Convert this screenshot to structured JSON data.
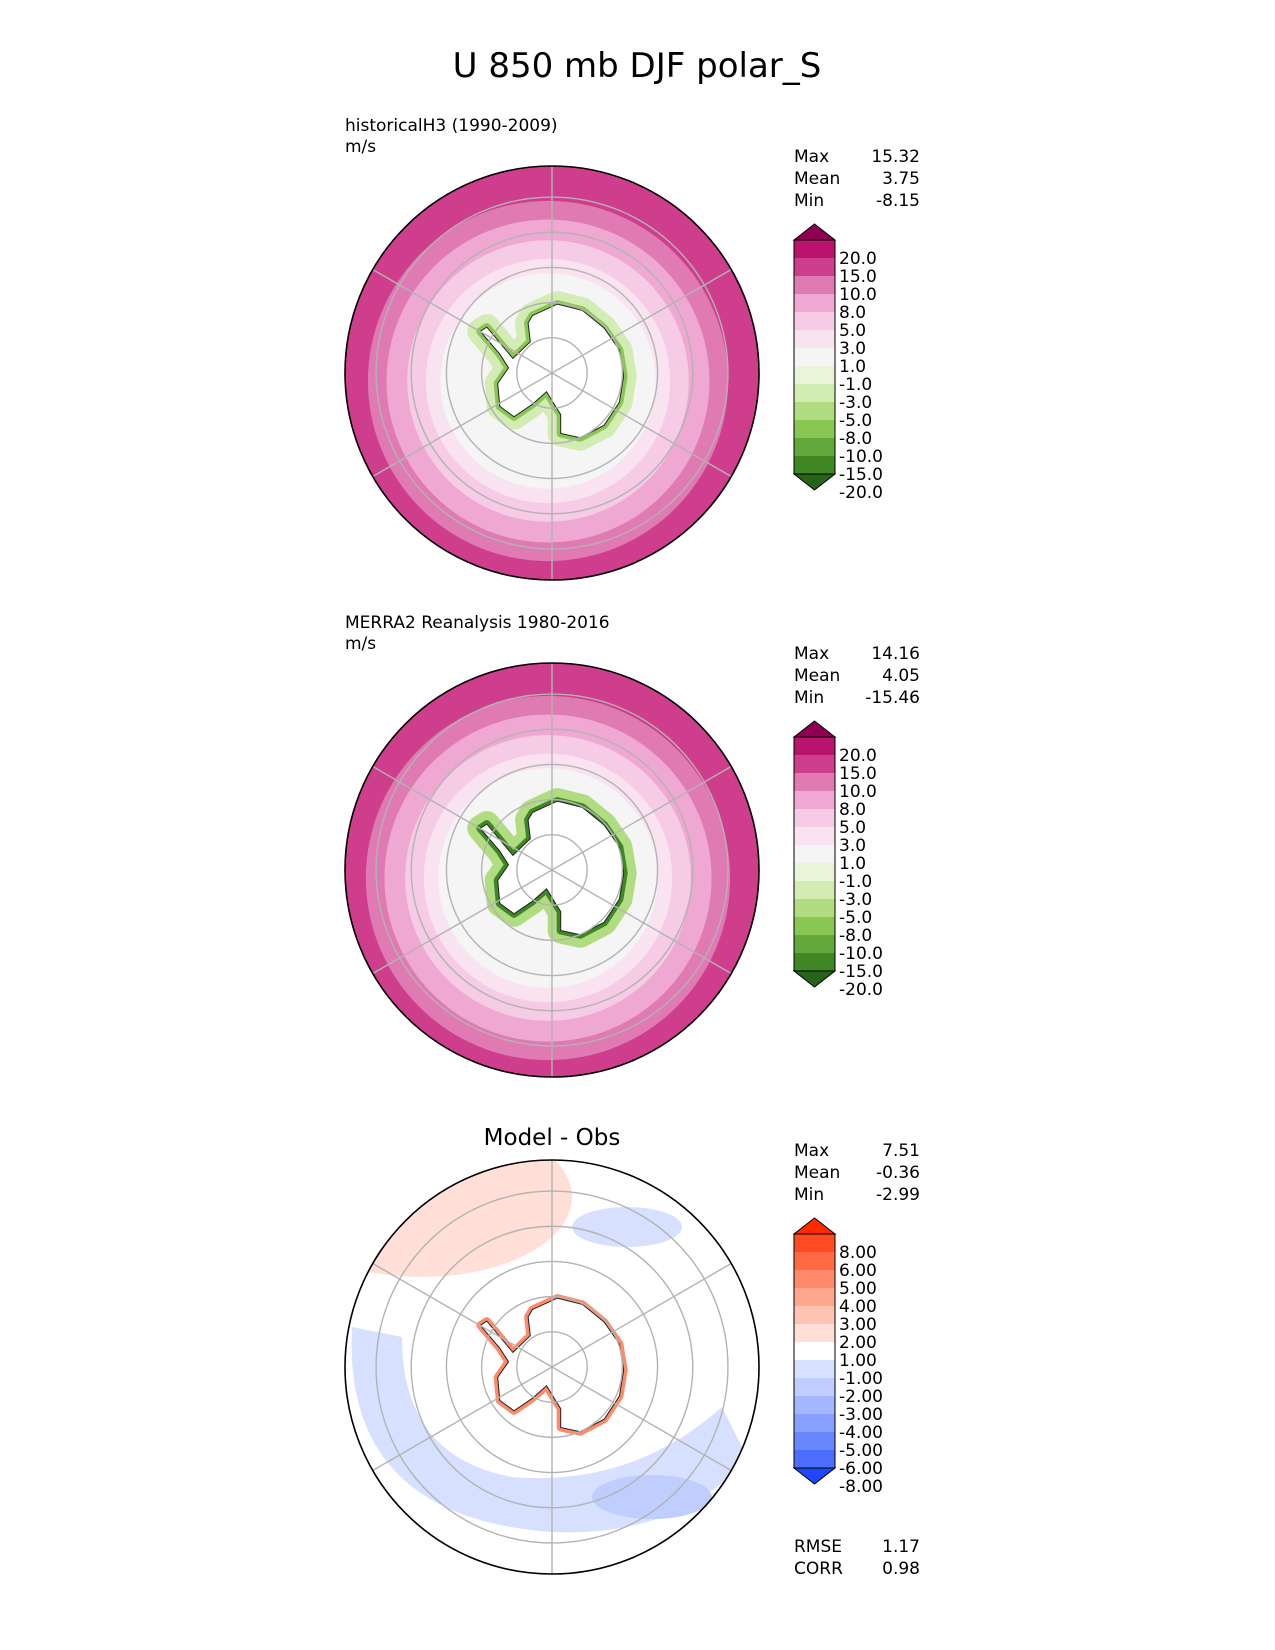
{
  "figure": {
    "title": "U 850 mb DJF polar_S"
  },
  "panels": [
    {
      "id": "model",
      "heading": "historicalH3 (1990-2009)",
      "units": "m/s",
      "center_title": "",
      "stats": [
        {
          "label": "Max",
          "value": "15.32"
        },
        {
          "label": "Mean",
          "value": "3.75"
        },
        {
          "label": "Min",
          "value": "-8.15"
        }
      ],
      "colorbar": {
        "labels": [
          "20.0",
          "15.0",
          "10.0",
          "8.0",
          "5.0",
          "3.0",
          "1.0",
          "-1.0",
          "-3.0",
          "-5.0",
          "-8.0",
          "-10.0",
          "-15.0",
          "-20.0"
        ],
        "colors": [
          "#8e0152",
          "#b9136d",
          "#cf3d8d",
          "#e07ab3",
          "#efa8d2",
          "#f6cbe5",
          "#fae3f1",
          "#f5f5f5",
          "#e9f4d9",
          "#d2ecb3",
          "#b2dc82",
          "#8ac653",
          "#62a83a",
          "#3f8624",
          "#276419"
        ]
      },
      "field": {
        "bands": [
          {
            "r": 1.0,
            "color": "#cf3d8d"
          },
          {
            "r": 0.87,
            "color": "#e07ab3"
          },
          {
            "r": 0.78,
            "color": "#efa8d2"
          },
          {
            "r": 0.68,
            "color": "#f6cbe5"
          },
          {
            "r": 0.59,
            "color": "#fae3f1"
          },
          {
            "r": 0.52,
            "color": "#f5f5f5"
          }
        ],
        "coast_ring": [
          "#d2ecb3",
          "#8ac653"
        ]
      }
    },
    {
      "id": "obs",
      "heading": "MERRA2 Reanalysis 1980-2016",
      "units": "m/s",
      "center_title": "",
      "stats": [
        {
          "label": "Max",
          "value": "14.16"
        },
        {
          "label": "Mean",
          "value": "4.05"
        },
        {
          "label": "Min",
          "value": "-15.46"
        }
      ],
      "colorbar": {
        "labels": [
          "20.0",
          "15.0",
          "10.0",
          "8.0",
          "5.0",
          "3.0",
          "1.0",
          "-1.0",
          "-3.0",
          "-5.0",
          "-8.0",
          "-10.0",
          "-15.0",
          "-20.0"
        ],
        "colors": [
          "#8e0152",
          "#b9136d",
          "#cf3d8d",
          "#e07ab3",
          "#efa8d2",
          "#f6cbe5",
          "#fae3f1",
          "#f5f5f5",
          "#e9f4d9",
          "#d2ecb3",
          "#b2dc82",
          "#8ac653",
          "#62a83a",
          "#3f8624",
          "#276419"
        ]
      },
      "field": {
        "bands": [
          {
            "r": 1.0,
            "color": "#cf3d8d"
          },
          {
            "r": 0.88,
            "color": "#e07ab3"
          },
          {
            "r": 0.79,
            "color": "#efa8d2"
          },
          {
            "r": 0.69,
            "color": "#f6cbe5"
          },
          {
            "r": 0.6,
            "color": "#fae3f1"
          },
          {
            "r": 0.53,
            "color": "#f5f5f5"
          }
        ],
        "coast_ring": [
          "#b2dc82",
          "#3f8624"
        ]
      }
    },
    {
      "id": "diff",
      "heading": "",
      "units": "",
      "center_title": "Model - Obs",
      "stats": [
        {
          "label": "Max",
          "value": "7.51"
        },
        {
          "label": "Mean",
          "value": "-0.36"
        },
        {
          "label": "Min",
          "value": "-2.99"
        }
      ],
      "footer_stats": [
        {
          "label": "RMSE",
          "value": "1.17"
        },
        {
          "label": "CORR",
          "value": "0.98"
        }
      ],
      "colorbar": {
        "labels": [
          "8.00",
          "6.00",
          "5.00",
          "4.00",
          "3.00",
          "2.00",
          "1.00",
          "-1.00",
          "-2.00",
          "-3.00",
          "-4.00",
          "-5.00",
          "-6.00",
          "-8.00"
        ],
        "colors": [
          "#ff2a00",
          "#ff4a22",
          "#ff6a45",
          "#ff8a6a",
          "#ffa68e",
          "#ffc3b3",
          "#ffdfd7",
          "#ffffff",
          "#d7e0ff",
          "#bfcdff",
          "#a3b6ff",
          "#879fff",
          "#6a87ff",
          "#4c6dff",
          "#1f47ff"
        ]
      },
      "field": {
        "bands": [
          {
            "r": 1.0,
            "color": "#ffffff"
          }
        ],
        "coast_ring": [
          "#ffffff",
          "#ff8a6a"
        ]
      }
    }
  ]
}
